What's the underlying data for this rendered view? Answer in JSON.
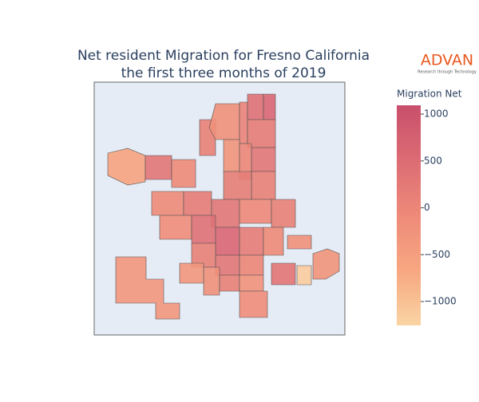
{
  "chart_data": {
    "type": "choropleth",
    "title": [
      "Net resident Migration for Fresno California",
      "the first three months of 2019"
    ],
    "colorbar_title": "Migration Net",
    "colorlim": [
      -1255,
      1094
    ],
    "colorticks": [
      1000,
      500,
      0,
      {
        "value": -500,
        "label": "−500"
      },
      {
        "value": -1000,
        "label": "−1000"
      }
    ],
    "colorscale": [
      "#fad4a3",
      "#f7a781",
      "#ee8a79",
      "#dc6c74",
      "#c84f6b"
    ],
    "values": [
      -350,
      -600,
      300,
      -100,
      100,
      -200,
      50,
      400,
      600,
      200,
      300,
      100,
      -300,
      0,
      150,
      -100,
      200,
      300,
      -50,
      100,
      -150,
      400,
      600,
      200,
      -100,
      100,
      300,
      0,
      -200,
      100,
      -250,
      -150,
      350,
      -1150,
      -300,
      -200,
      -350
    ]
  },
  "logo": {
    "name": "ADVAN",
    "tagline": "Research through Technology"
  }
}
